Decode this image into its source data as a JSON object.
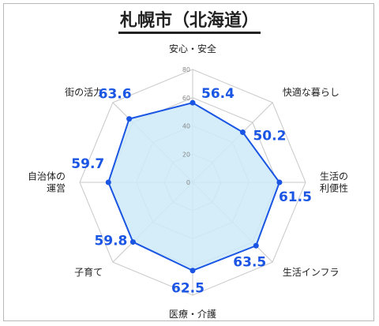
{
  "header": {
    "title": "札幌市（北海道）"
  },
  "chart_data": {
    "type": "radar",
    "title": "札幌市（北海道）",
    "categories": [
      [
        "安心・安全"
      ],
      [
        "快適な暮らし"
      ],
      [
        "生活の",
        "利便性"
      ],
      [
        "生活インフラ"
      ],
      [
        "医療・介護"
      ],
      [
        "子育て"
      ],
      [
        "自治体の",
        "運営"
      ],
      [
        "街の活力"
      ]
    ],
    "values": [
      56.4,
      50.2,
      61.5,
      63.5,
      62.5,
      59.8,
      59.7,
      63.6
    ],
    "value_labels": [
      "56.4",
      "50.2",
      "61.5",
      "63.5",
      "62.5",
      "59.8",
      "59.7",
      "63.6"
    ],
    "rlim": [
      0,
      80
    ],
    "ticks": [
      "0",
      "20",
      "40",
      "60",
      "80"
    ],
    "grid": true,
    "colors": {
      "line": "#1a55e3",
      "fill": "#cceaf8",
      "grid": "#c8c8c8",
      "label": "#1a55e3"
    }
  }
}
